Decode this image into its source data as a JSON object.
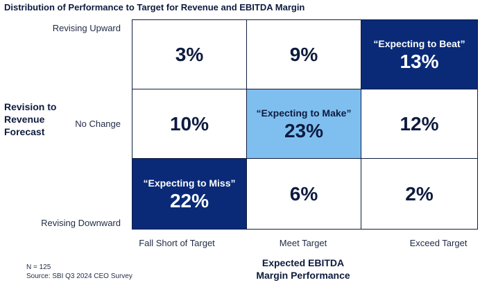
{
  "title": "Distribution of Performance to Target for Revenue and EBITDA Margin",
  "ylabel": [
    "Revision to",
    "Revenue",
    "Forecast"
  ],
  "xlabel": [
    "Expected EBITDA",
    "Margin Performance"
  ],
  "row_labels": [
    "Revising Upward",
    "No Change",
    "Revising Downward"
  ],
  "col_labels": [
    "Fall Short of Target",
    "Meet Target",
    "Exceed Target"
  ],
  "notes": [
    "N = 125",
    "Source: SBI Q3 2024 CEO Survey"
  ],
  "colors": {
    "dark": "#0a2a78",
    "light": "#7fbff0",
    "text": "#0d1b3e"
  },
  "chart_data": {
    "type": "heatmap",
    "rows": [
      "Revising Upward",
      "No Change",
      "Revising Downward"
    ],
    "columns": [
      "Fall Short of Target",
      "Meet Target",
      "Exceed Target"
    ],
    "values": [
      [
        "3%",
        "9%",
        "13%"
      ],
      [
        "10%",
        "23%",
        "12%"
      ],
      [
        "22%",
        "6%",
        "2%"
      ]
    ],
    "highlights": [
      {
        "row": 0,
        "col": 2,
        "label": "“Expecting to Beat”",
        "style": "dark"
      },
      {
        "row": 1,
        "col": 1,
        "label": "“Expecting to Make”",
        "style": "light"
      },
      {
        "row": 2,
        "col": 0,
        "label": "“Expecting to Miss”",
        "style": "dark"
      }
    ]
  }
}
